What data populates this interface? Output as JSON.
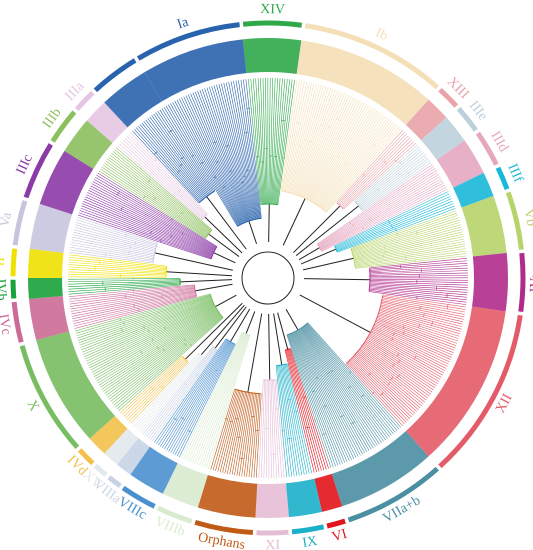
{
  "clades": [
    {
      "id": "Ia",
      "label": "Ia",
      "color": "#2a63ad",
      "a0": -31,
      "a1": -6
    },
    {
      "id": "XIV",
      "label": "XIV",
      "color": "#2fa84a",
      "a0": -6,
      "a1": 8
    },
    {
      "id": "Ib",
      "label": "Ib",
      "color": "#f4dfb6",
      "a0": 8,
      "a1": 42
    },
    {
      "id": "XIII",
      "label": "XIII",
      "color": "#e9a3a9",
      "a0": 42,
      "a1": 48
    },
    {
      "id": "IIIe",
      "label": "IIIe",
      "color": "#bcd0dc",
      "a0": 48,
      "a1": 55
    },
    {
      "id": "IIId",
      "label": "IIId",
      "color": "#e5a7c0",
      "a0": 55,
      "a1": 64
    },
    {
      "id": "IIIf",
      "label": "IIIf",
      "color": "#18b8d8",
      "a0": 64,
      "a1": 70
    },
    {
      "id": "Vb",
      "label": "Vb",
      "color": "#b7d46a",
      "a0": 70,
      "a1": 84
    },
    {
      "id": "IVa",
      "label": "IVa",
      "color": "#b02c8c",
      "a0": 84,
      "a1": 98
    },
    {
      "id": "XII",
      "label": "XII",
      "color": "#e35b68",
      "a0": 98,
      "a1": 138
    },
    {
      "id": "VIIa+b",
      "label": "VIIa+b",
      "color": "#4a8fa2",
      "a0": 138,
      "a1": 162
    },
    {
      "id": "VI",
      "label": "VI",
      "color": "#e3131b",
      "a0": 162,
      "a1": 167
    },
    {
      "id": "IX",
      "label": "IX",
      "color": "#1bb0c9",
      "a0": 167,
      "a1": 175
    },
    {
      "id": "XI",
      "label": "XI",
      "color": "#e5bcd6",
      "a0": 175,
      "a1": 183
    },
    {
      "id": "Orphans",
      "label": "Orphans",
      "color": "#c05a17",
      "a0": 183,
      "a1": 197
    },
    {
      "id": "VIIIb",
      "label": "VIIIb",
      "color": "#d9ebcf",
      "a0": 197,
      "a1": 206
    },
    {
      "id": "VIIIc",
      "label": "VIIIc",
      "color": "#4a90cf",
      "a0": 206,
      "a1": 215
    },
    {
      "id": "VIIIa",
      "label": "VIIIa",
      "color": "#c6d3e6",
      "a0": 215,
      "a1": 219
    },
    {
      "id": "XV",
      "label": "XV",
      "color": "#e2e8ec",
      "a0": 219,
      "a1": 223
    },
    {
      "id": "IVd",
      "label": "IVd",
      "color": "#f3c14b",
      "a0": 223,
      "a1": 228
    },
    {
      "id": "X",
      "label": "X",
      "color": "#78bd62",
      "a0": 228,
      "a1": 255
    },
    {
      "id": "IVc",
      "label": "IVc",
      "color": "#cc6c96",
      "a0": 255,
      "a1": 265
    },
    {
      "id": "IVb",
      "label": "IVb",
      "color": "#18a23a",
      "a0": 265,
      "a1": 270
    },
    {
      "id": "II",
      "label": "II",
      "color": "#f0e000",
      "a0": 270,
      "a1": 277
    },
    {
      "id": "Va",
      "label": "Va",
      "color": "#c7c5de",
      "a0": 277,
      "a1": 288
    },
    {
      "id": "IIIc",
      "label": "IIIc",
      "color": "#8b3aa6",
      "a0": 288,
      "a1": 302
    },
    {
      "id": "IIIb",
      "label": "IIIb",
      "color": "#8cbf5d",
      "a0": 302,
      "a1": 311
    },
    {
      "id": "IIIa",
      "label": "IIIa",
      "color": "#e6c5e2",
      "a0": 311,
      "a1": 317
    },
    {
      "id": "Ib-tail",
      "label": "",
      "color": "#2a63ad",
      "a0": 317,
      "a1": 329
    }
  ]
}
